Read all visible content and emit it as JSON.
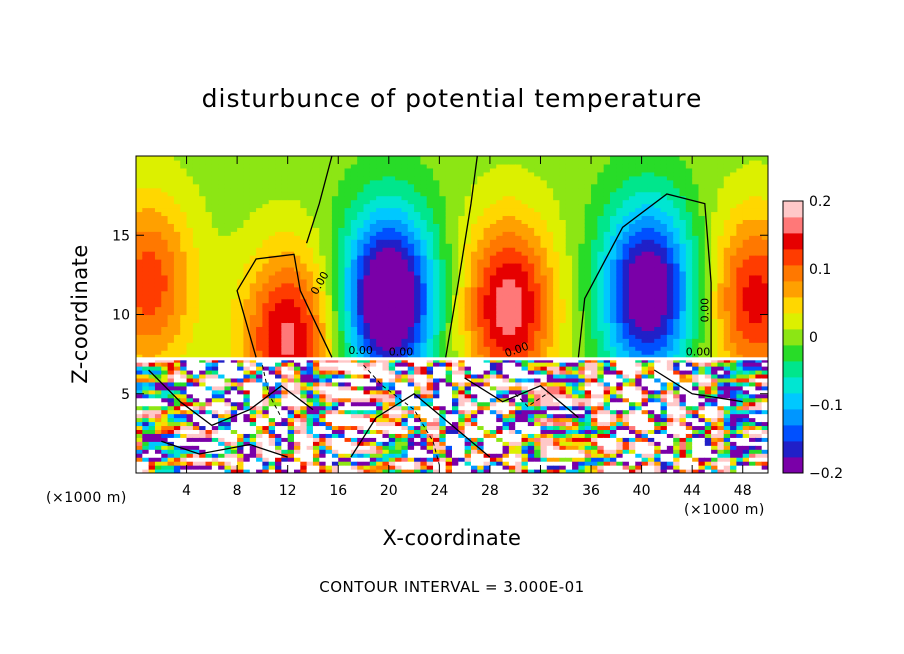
{
  "chart_data": {
    "type": "heatmap",
    "title": "disturbunce of potential temperature",
    "xlabel": "X-coordinate",
    "ylabel": "Z-coordinate",
    "x_unit_label": "(×1000 m)",
    "z_unit_label": "(×1000 m)",
    "xlim": [
      0,
      50
    ],
    "ylim": [
      0,
      20
    ],
    "x_ticks": [
      4,
      8,
      12,
      16,
      20,
      24,
      28,
      32,
      36,
      40,
      44,
      48
    ],
    "y_ticks": [
      5,
      10,
      15
    ],
    "colorbar": {
      "range": [
        -0.2,
        0.2
      ],
      "tick_values": [
        0.2,
        0.1,
        0,
        -0.1,
        -0.2
      ],
      "tick_labels": [
        "0.2",
        "0.1",
        "0",
        "−0.1",
        "−0.2"
      ]
    },
    "contour_interval_text": "CONTOUR INTERVAL = 3.000E-01",
    "contour_labels": [
      "0.00",
      "0.00",
      "0.00",
      "0.00",
      "0.00",
      "0.00"
    ],
    "features": [
      {
        "name": "warm-left",
        "x": 1,
        "z": 12,
        "amp": 0.12
      },
      {
        "name": "warm-12",
        "x": 12,
        "z": 8.5,
        "amp": 0.16
      },
      {
        "name": "cold-20",
        "x": 20,
        "z": 11,
        "amp": -0.25
      },
      {
        "name": "warm-29",
        "x": 29.5,
        "z": 10.5,
        "amp": 0.17
      },
      {
        "name": "cold-40",
        "x": 40.5,
        "z": 11.5,
        "amp": -0.22
      },
      {
        "name": "warm-right",
        "x": 49,
        "z": 11,
        "amp": 0.14
      }
    ]
  }
}
